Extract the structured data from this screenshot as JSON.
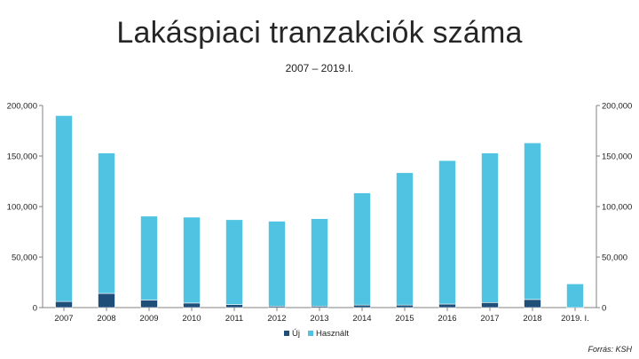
{
  "title": "Lakáspiaci tranzakciók száma",
  "subtitle": "2007 – 2019.I.",
  "source": "Forrás: KSH",
  "colors": {
    "new": "#1f4e79",
    "used": "#4fc3e1",
    "axis": "#808080"
  },
  "chart_data": {
    "type": "bar",
    "stacked": true,
    "categories": [
      "2007",
      "2008",
      "2009",
      "2010",
      "2011",
      "2012",
      "2013",
      "2014",
      "2015",
      "2016",
      "2017",
      "2018",
      "2019. I."
    ],
    "series": [
      {
        "name": "Új",
        "values": [
          6000,
          14000,
          7500,
          4500,
          3000,
          1500,
          1500,
          2500,
          2500,
          3500,
          5000,
          8000,
          0
        ]
      },
      {
        "name": "Használt",
        "values": [
          184000,
          139000,
          83000,
          85000,
          84000,
          84000,
          86500,
          111000,
          131000,
          142000,
          148000,
          155000,
          23500
        ]
      }
    ],
    "ylim": [
      0,
      200000
    ],
    "yticks": [
      0,
      50000,
      100000,
      150000,
      200000
    ],
    "ytick_labels": [
      "0",
      "50,000",
      "100,000",
      "150,000",
      "200,000"
    ],
    "secondary_yaxis": true,
    "legend_position": "bottom",
    "xlabel": "",
    "ylabel": ""
  }
}
